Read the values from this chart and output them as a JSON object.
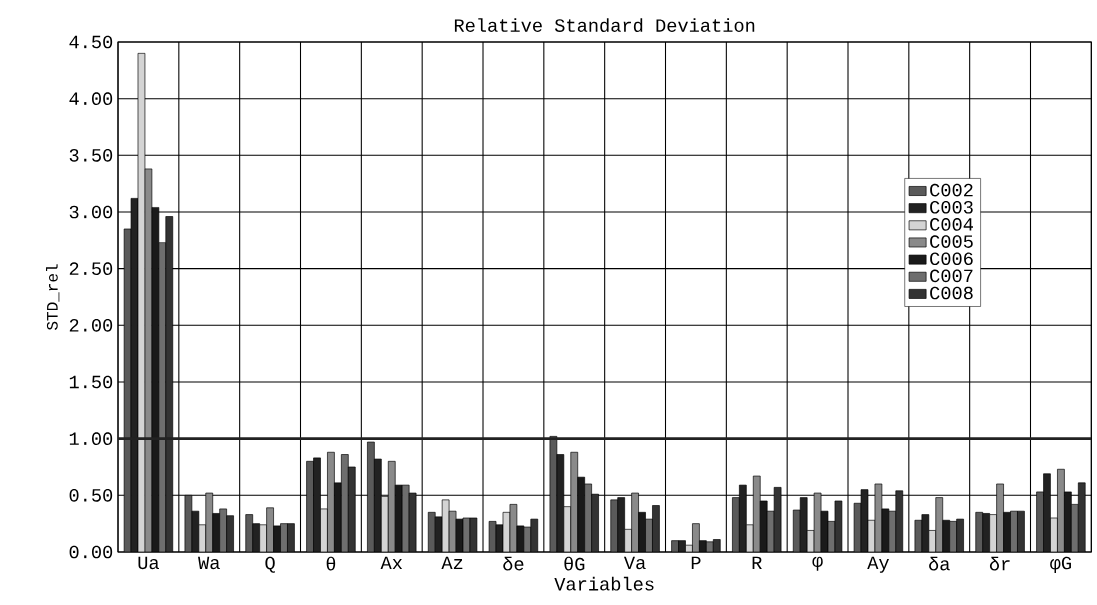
{
  "chart_data": {
    "type": "bar",
    "title": "Relative Standard Deviation",
    "xlabel": "Variables",
    "ylabel": "STD_rel",
    "categories": [
      "Ua",
      "Wa",
      "Q",
      "θ",
      "Ax",
      "Az",
      "δe",
      "θG",
      "Va",
      "P",
      "R",
      "φ",
      "Ay",
      "δa",
      "δr",
      "φG"
    ],
    "series": [
      {
        "name": "C002",
        "color": "#5a5a5a",
        "values": [
          2.85,
          0.5,
          0.33,
          0.8,
          0.97,
          0.35,
          0.27,
          1.02,
          0.46,
          0.1,
          0.48,
          0.37,
          0.43,
          0.28,
          0.35,
          0.53
        ]
      },
      {
        "name": "C003",
        "color": "#222222",
        "values": [
          3.12,
          0.36,
          0.25,
          0.83,
          0.82,
          0.31,
          0.24,
          0.86,
          0.48,
          0.1,
          0.59,
          0.48,
          0.55,
          0.33,
          0.34,
          0.69
        ]
      },
      {
        "name": "C004",
        "color": "#d4d4d4",
        "values": [
          4.4,
          0.24,
          0.24,
          0.38,
          0.49,
          0.46,
          0.35,
          0.4,
          0.2,
          0.06,
          0.24,
          0.19,
          0.28,
          0.19,
          0.33,
          0.3
        ]
      },
      {
        "name": "C005",
        "color": "#8a8a8a",
        "values": [
          3.38,
          0.52,
          0.39,
          0.88,
          0.8,
          0.36,
          0.42,
          0.88,
          0.52,
          0.25,
          0.67,
          0.52,
          0.6,
          0.48,
          0.6,
          0.73
        ]
      },
      {
        "name": "C006",
        "color": "#1a1a1a",
        "values": [
          3.04,
          0.34,
          0.23,
          0.61,
          0.59,
          0.29,
          0.23,
          0.66,
          0.35,
          0.1,
          0.45,
          0.36,
          0.38,
          0.28,
          0.35,
          0.53
        ]
      },
      {
        "name": "C007",
        "color": "#6e6e6e",
        "values": [
          2.73,
          0.38,
          0.25,
          0.86,
          0.59,
          0.3,
          0.22,
          0.6,
          0.29,
          0.09,
          0.36,
          0.27,
          0.36,
          0.27,
          0.36,
          0.42
        ]
      },
      {
        "name": "C008",
        "color": "#333333",
        "values": [
          2.96,
          0.32,
          0.25,
          0.75,
          0.52,
          0.3,
          0.29,
          0.51,
          0.41,
          0.11,
          0.57,
          0.45,
          0.54,
          0.29,
          0.36,
          0.61
        ]
      }
    ],
    "ylim": [
      0,
      4.5
    ],
    "yticks": [
      {
        "value": 0,
        "label": "0.00"
      },
      {
        "value": 0.5,
        "label": "0.50"
      },
      {
        "value": 1,
        "label": "1.00"
      },
      {
        "value": 1.5,
        "label": "1.50"
      },
      {
        "value": 2,
        "label": "2.00"
      },
      {
        "value": 2.5,
        "label": "2.50"
      },
      {
        "value": 3,
        "label": "3.00"
      },
      {
        "value": 3.5,
        "label": "3.50"
      },
      {
        "value": 4,
        "label": "4.00"
      },
      {
        "value": 4.5,
        "label": "4.50"
      }
    ],
    "ref_lines": [
      {
        "axis": "y",
        "value": 1.0,
        "color": "#222222"
      }
    ],
    "grid": true,
    "legend": "right"
  }
}
